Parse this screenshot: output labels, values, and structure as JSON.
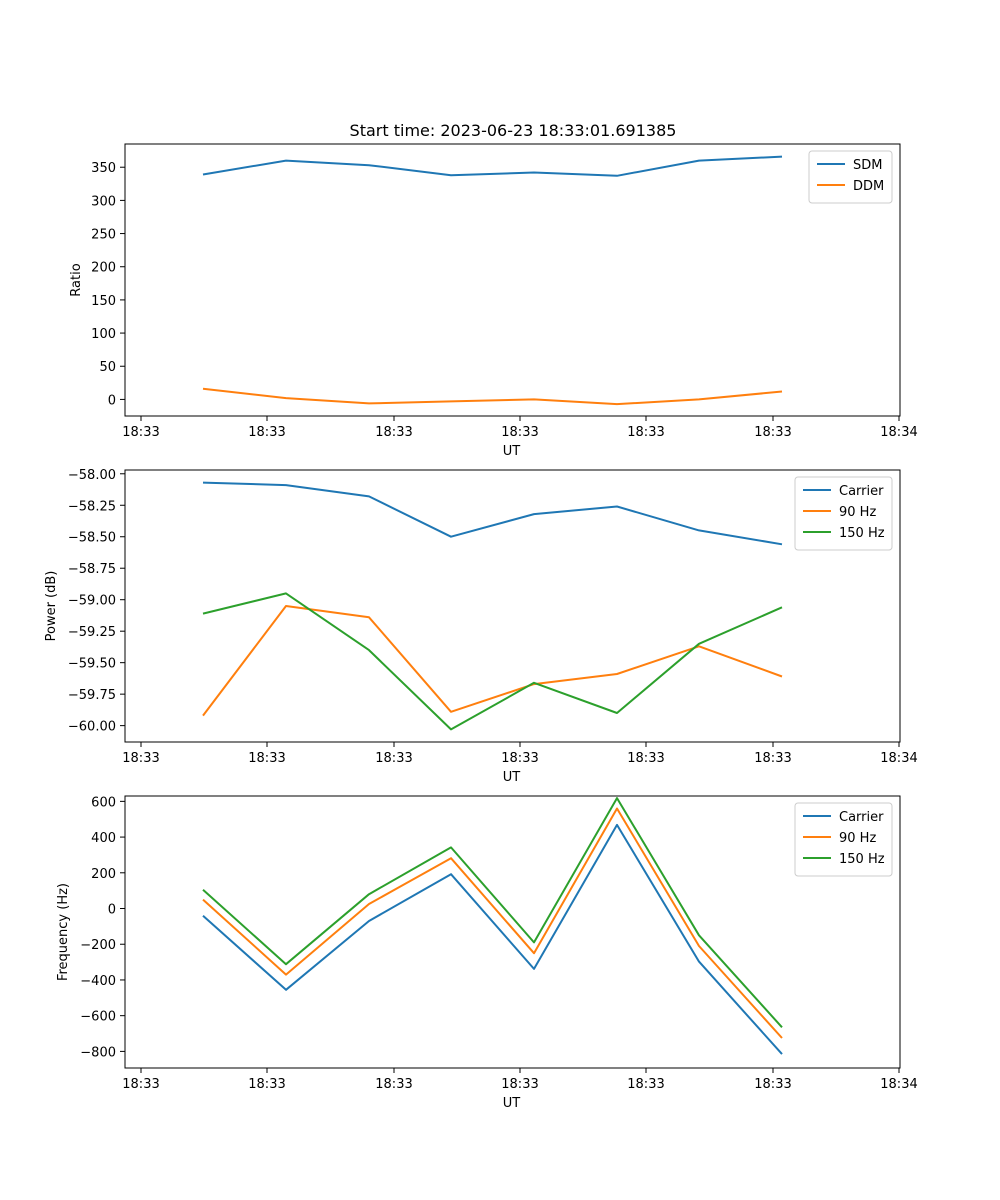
{
  "title": "Start time: 2023-06-23 18:33:01.691385",
  "chart_data": [
    {
      "type": "line",
      "xlabel": "UT",
      "ylabel": "Ratio",
      "x_ticks": [
        "18:33",
        "18:33",
        "18:33",
        "18:33",
        "18:33",
        "18:33",
        "18:34"
      ],
      "y_ticks": [
        0,
        50,
        100,
        150,
        200,
        250,
        300,
        350
      ],
      "ylim": [
        -25,
        385
      ],
      "legend_location": "upper right",
      "series": [
        {
          "name": "SDM",
          "color": "#1f77b4",
          "values": [
            339,
            360,
            353,
            338,
            342,
            337,
            360,
            366
          ]
        },
        {
          "name": "DDM",
          "color": "#ff7f0e",
          "values": [
            16,
            2,
            -6,
            -3,
            0,
            -7,
            0,
            12
          ]
        }
      ]
    },
    {
      "type": "line",
      "xlabel": "UT",
      "ylabel": "Power (dB)",
      "x_ticks": [
        "18:33",
        "18:33",
        "18:33",
        "18:33",
        "18:33",
        "18:33",
        "18:34"
      ],
      "y_ticks": [
        -58.0,
        -58.25,
        -58.5,
        -58.75,
        -59.0,
        -59.25,
        -59.5,
        -59.75,
        -60.0
      ],
      "y_tick_labels": [
        "−58.00",
        "−58.25",
        "−58.50",
        "−58.75",
        "−59.00",
        "−59.25",
        "−59.50",
        "−59.75",
        "−60.00"
      ],
      "ylim": [
        -60.13,
        -57.97
      ],
      "legend_location": "upper right",
      "series": [
        {
          "name": "Carrier",
          "color": "#1f77b4",
          "values": [
            -58.07,
            -58.09,
            -58.18,
            -58.5,
            -58.32,
            -58.26,
            -58.45,
            -58.56
          ]
        },
        {
          "name": "90 Hz",
          "color": "#ff7f0e",
          "values": [
            -59.92,
            -59.05,
            -59.14,
            -59.89,
            -59.67,
            -59.59,
            -59.37,
            -59.61
          ]
        },
        {
          "name": "150 Hz",
          "color": "#2ca02c",
          "values": [
            -59.11,
            -58.95,
            -59.4,
            -60.03,
            -59.66,
            -59.9,
            -59.35,
            -59.06
          ]
        }
      ]
    },
    {
      "type": "line",
      "xlabel": "UT",
      "ylabel": "Frequency (Hz)",
      "x_ticks": [
        "18:33",
        "18:33",
        "18:33",
        "18:33",
        "18:33",
        "18:33",
        "18:34"
      ],
      "y_ticks": [
        600,
        400,
        200,
        0,
        -200,
        -400,
        -600,
        -800
      ],
      "y_tick_labels": [
        "600",
        "400",
        "200",
        "0",
        "−200",
        "−400",
        "−600",
        "−800"
      ],
      "ylim": [
        -893,
        630
      ],
      "legend_location": "upper right",
      "series": [
        {
          "name": "Carrier",
          "color": "#1f77b4",
          "values": [
            -40,
            -455,
            -70,
            192,
            -338,
            468,
            -297,
            -815
          ]
        },
        {
          "name": "90 Hz",
          "color": "#ff7f0e",
          "values": [
            50,
            -370,
            25,
            282,
            -250,
            560,
            -210,
            -725
          ]
        },
        {
          "name": "150 Hz",
          "color": "#2ca02c",
          "values": [
            105,
            -312,
            80,
            342,
            -190,
            618,
            -150,
            -665
          ]
        }
      ]
    }
  ]
}
